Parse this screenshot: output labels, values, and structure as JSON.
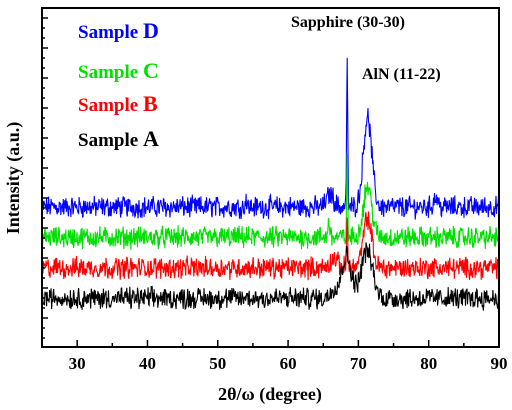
{
  "chart_data": {
    "type": "line",
    "xlabel": "2θ/ω (degree)",
    "ylabel": "Intensity (a.u.)",
    "xlim": [
      25,
      90
    ],
    "x_ticks": [
      30,
      40,
      50,
      60,
      70,
      80,
      90
    ],
    "y_ticks_shown": false,
    "annotations": [
      {
        "text": "Sapphire (30-30)",
        "x": 68.4
      },
      {
        "text": "AlN (11-22)",
        "x": 71.3
      }
    ],
    "legend": [
      {
        "prefix": "Sample",
        "letter": "D",
        "color": "#0000ff"
      },
      {
        "prefix": "Sample",
        "letter": "C",
        "color": "#00e000"
      },
      {
        "prefix": "Sample",
        "letter": "B",
        "color": "#ff0000"
      },
      {
        "prefix": "Sample",
        "letter": "A",
        "color": "#000000"
      }
    ],
    "series": [
      {
        "legend_index": 0,
        "color": "#0000ff",
        "baseline": 3.0,
        "peaks": [
          {
            "x": 68.4,
            "height": 4.5,
            "width": 0.08
          },
          {
            "x": 71.3,
            "height": 2.8,
            "width": 0.6
          },
          {
            "x": 66.0,
            "height": 0.4,
            "width": 0.5
          },
          {
            "x": 54.0,
            "height": 0.6,
            "width": 0.04
          },
          {
            "x": 81.0,
            "height": 0.3,
            "width": 0.3
          }
        ]
      },
      {
        "legend_index": 1,
        "color": "#00e000",
        "baseline": 2.05,
        "peaks": [
          {
            "x": 68.4,
            "height": 2.3,
            "width": 0.08
          },
          {
            "x": 71.3,
            "height": 1.6,
            "width": 0.6
          },
          {
            "x": 65.8,
            "height": 0.5,
            "width": 0.15
          }
        ]
      },
      {
        "legend_index": 2,
        "color": "#ff0000",
        "baseline": 1.1,
        "peaks": [
          {
            "x": 68.4,
            "height": 1.8,
            "width": 0.08
          },
          {
            "x": 71.3,
            "height": 1.55,
            "width": 0.6
          },
          {
            "x": 66.5,
            "height": 0.3,
            "width": 0.5
          }
        ]
      },
      {
        "legend_index": 3,
        "color": "#000000",
        "baseline": 0.15,
        "peaks": [
          {
            "x": 68.3,
            "height": 1.3,
            "width": 0.7
          },
          {
            "x": 71.2,
            "height": 1.5,
            "width": 0.8
          },
          {
            "x": 66.5,
            "height": 0.3,
            "width": 0.5
          }
        ]
      }
    ]
  }
}
